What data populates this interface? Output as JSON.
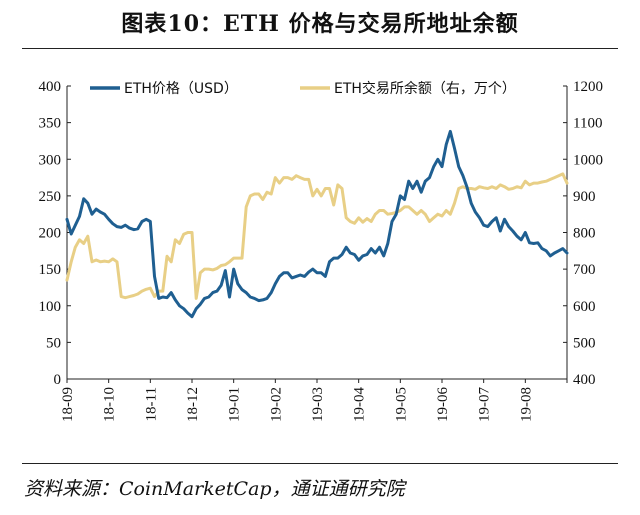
{
  "page": {
    "title": "图表10：ETH 价格与交易所地址余额",
    "source": "资料来源：CoinMarketCap，通证通研究院"
  },
  "chart_data": {
    "type": "line",
    "title": "",
    "xlabel": "",
    "x_categories": [
      "18-09",
      "18-10",
      "18-11",
      "18-12",
      "19-01",
      "19-02",
      "19-03",
      "19-04",
      "19-05",
      "19-06",
      "19-07",
      "19-08"
    ],
    "x_range": [
      0,
      12
    ],
    "y_left": {
      "label": "",
      "range": [
        0,
        400
      ],
      "ticks": [
        0,
        50,
        100,
        150,
        200,
        250,
        300,
        350,
        400
      ]
    },
    "y_right": {
      "label": "",
      "range": [
        400,
        1200
      ],
      "ticks": [
        400,
        500,
        600,
        700,
        800,
        900,
        1000,
        1100,
        1200
      ]
    },
    "grid": false,
    "legend_position": "top",
    "series": [
      {
        "name": "ETH价格（USD）",
        "axis": "left",
        "color": "#1f5f91",
        "x": [
          0.0,
          0.1,
          0.2,
          0.3,
          0.4,
          0.5,
          0.6,
          0.7,
          0.8,
          0.9,
          1.0,
          1.1,
          1.2,
          1.3,
          1.4,
          1.5,
          1.6,
          1.7,
          1.8,
          1.9,
          2.0,
          2.1,
          2.2,
          2.3,
          2.4,
          2.5,
          2.6,
          2.7,
          2.8,
          2.9,
          3.0,
          3.1,
          3.2,
          3.3,
          3.4,
          3.5,
          3.6,
          3.7,
          3.8,
          3.9,
          4.0,
          4.1,
          4.2,
          4.3,
          4.4,
          4.5,
          4.6,
          4.7,
          4.8,
          4.9,
          5.0,
          5.1,
          5.2,
          5.3,
          5.4,
          5.5,
          5.6,
          5.7,
          5.8,
          5.9,
          6.0,
          6.1,
          6.2,
          6.3,
          6.4,
          6.5,
          6.6,
          6.7,
          6.8,
          6.9,
          7.0,
          7.1,
          7.2,
          7.3,
          7.4,
          7.5,
          7.6,
          7.7,
          7.8,
          7.9,
          8.0,
          8.1,
          8.2,
          8.3,
          8.4,
          8.5,
          8.6,
          8.7,
          8.8,
          8.9,
          9.0,
          9.1,
          9.2,
          9.3,
          9.4,
          9.5,
          9.6,
          9.7,
          9.8,
          9.9,
          10.0,
          10.1,
          10.2,
          10.3,
          10.4,
          10.5,
          10.6,
          10.7,
          10.8,
          10.9,
          11.0,
          11.1,
          11.2,
          11.3,
          11.4,
          11.5,
          11.6,
          11.7,
          11.8,
          11.9,
          12.0
        ],
        "values": [
          218,
          198,
          210,
          222,
          246,
          240,
          225,
          232,
          228,
          225,
          218,
          212,
          208,
          207,
          210,
          206,
          204,
          205,
          215,
          218,
          215,
          140,
          110,
          112,
          111,
          118,
          108,
          100,
          96,
          90,
          85,
          96,
          102,
          110,
          112,
          118,
          120,
          128,
          148,
          112,
          150,
          130,
          122,
          118,
          112,
          110,
          107,
          108,
          110,
          118,
          130,
          140,
          145,
          145,
          138,
          140,
          142,
          140,
          146,
          150,
          145,
          145,
          140,
          160,
          165,
          165,
          170,
          180,
          172,
          170,
          162,
          168,
          170,
          178,
          172,
          180,
          168,
          185,
          215,
          225,
          250,
          245,
          270,
          260,
          270,
          255,
          270,
          275,
          290,
          300,
          290,
          320,
          338,
          315,
          290,
          278,
          262,
          240,
          228,
          220,
          210,
          208,
          215,
          220,
          202,
          218,
          208,
          202,
          195,
          190,
          200,
          186,
          185,
          186,
          178,
          175,
          168,
          172,
          175,
          178,
          172
        ]
      },
      {
        "name": "ETH交易所余额（右，万个）",
        "axis": "right",
        "color": "#e8cf86",
        "x": [
          0.0,
          0.1,
          0.2,
          0.3,
          0.4,
          0.5,
          0.6,
          0.7,
          0.8,
          0.9,
          1.0,
          1.1,
          1.2,
          1.3,
          1.4,
          1.5,
          1.6,
          1.7,
          1.8,
          1.9,
          2.0,
          2.1,
          2.2,
          2.3,
          2.4,
          2.5,
          2.6,
          2.7,
          2.8,
          2.9,
          3.0,
          3.1,
          3.2,
          3.3,
          3.4,
          3.5,
          3.6,
          3.7,
          3.8,
          3.9,
          4.0,
          4.1,
          4.2,
          4.3,
          4.4,
          4.5,
          4.6,
          4.7,
          4.8,
          4.9,
          5.0,
          5.1,
          5.2,
          5.3,
          5.4,
          5.5,
          5.6,
          5.7,
          5.8,
          5.9,
          6.0,
          6.1,
          6.2,
          6.3,
          6.4,
          6.5,
          6.6,
          6.7,
          6.8,
          6.9,
          7.0,
          7.1,
          7.2,
          7.3,
          7.4,
          7.5,
          7.6,
          7.7,
          7.8,
          7.9,
          8.0,
          8.1,
          8.2,
          8.3,
          8.4,
          8.5,
          8.6,
          8.7,
          8.8,
          8.9,
          9.0,
          9.1,
          9.2,
          9.3,
          9.4,
          9.5,
          9.6,
          9.7,
          9.8,
          9.9,
          10.0,
          10.1,
          10.2,
          10.3,
          10.4,
          10.5,
          10.6,
          10.7,
          10.8,
          10.9,
          11.0,
          11.1,
          11.2,
          11.3,
          11.4,
          11.5,
          11.6,
          11.7,
          11.8,
          11.9,
          12.0
        ],
        "values": [
          670,
          720,
          760,
          780,
          770,
          790,
          720,
          725,
          720,
          722,
          720,
          728,
          720,
          625,
          622,
          625,
          628,
          632,
          640,
          645,
          648,
          625,
          640,
          640,
          735,
          720,
          780,
          770,
          795,
          800,
          800,
          620,
          690,
          700,
          700,
          698,
          702,
          710,
          712,
          720,
          730,
          730,
          730,
          870,
          900,
          905,
          905,
          890,
          910,
          905,
          950,
          935,
          950,
          950,
          945,
          955,
          950,
          945,
          945,
          900,
          918,
          900,
          920,
          920,
          875,
          930,
          920,
          840,
          830,
          825,
          840,
          828,
          838,
          830,
          850,
          860,
          860,
          850,
          852,
          855,
          860,
          870,
          870,
          860,
          850,
          860,
          850,
          830,
          840,
          850,
          845,
          860,
          850,
          880,
          920,
          925,
          920,
          920,
          918,
          925,
          922,
          920,
          925,
          920,
          930,
          925,
          918,
          920,
          925,
          922,
          940,
          930,
          935,
          935,
          938,
          940,
          945,
          950,
          955,
          960,
          935
        ]
      }
    ]
  }
}
